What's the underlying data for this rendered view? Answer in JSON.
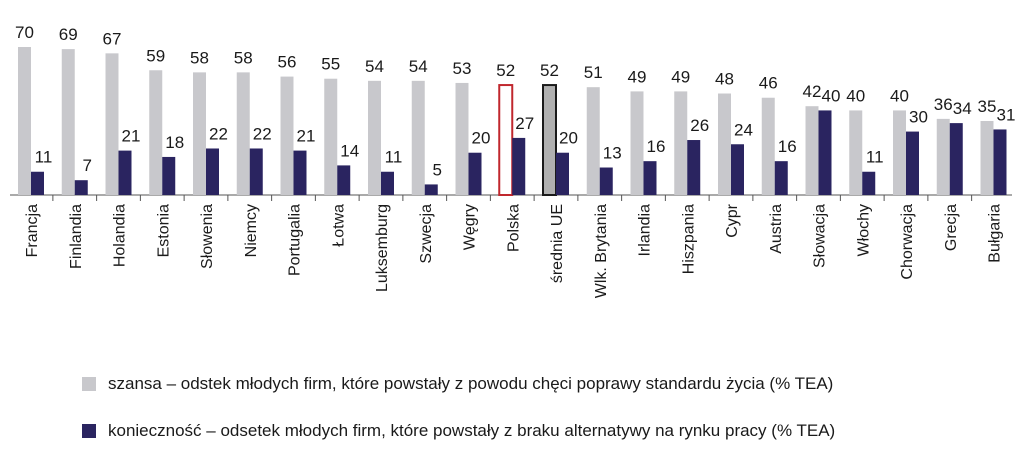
{
  "colors": {
    "szansa": "#c8c8cc",
    "koniecznosc": "#2a2460",
    "highlight_polska": "#c0272d",
    "highlight_srednia": "#1a1a1a",
    "srednia_fill": "#b0b0b0"
  },
  "chart_data": {
    "type": "bar",
    "categories": [
      "Francja",
      "Finlandia",
      "Holandia",
      "Estonia",
      "Słowenia",
      "Niemcy",
      "Portugalia",
      "Łotwa",
      "Luksemburg",
      "Szwecja",
      "Węgry",
      "Polska",
      "średnia UE",
      "Wlk. Brytania",
      "Irlandia",
      "Hiszpania",
      "Cypr",
      "Austria",
      "Słowacja",
      "Włochy",
      "Chorwacja",
      "Grecja",
      "Bułgaria"
    ],
    "series": [
      {
        "name": "szansa – odstek młodych firm, które powstały z powodu chęci poprawy standardu życia (% TEA)",
        "values": [
          70,
          69,
          67,
          59,
          58,
          58,
          56,
          55,
          54,
          54,
          53,
          52,
          52,
          51,
          49,
          49,
          48,
          46,
          42,
          40,
          40,
          36,
          35
        ]
      },
      {
        "name": "konieczność – odsetek młodych firm, które powstały z braku alternatywy na rynku pracy (% TEA)",
        "values": [
          11,
          7,
          21,
          18,
          22,
          22,
          21,
          14,
          11,
          5,
          20,
          27,
          20,
          13,
          16,
          26,
          24,
          16,
          40,
          11,
          30,
          34,
          31
        ]
      }
    ],
    "highlighted": {
      "Polska": "highlight_polska",
      "średnia UE": "highlight_srednia"
    },
    "ylim": [
      0,
      70
    ],
    "grid": false,
    "legend": "bottom"
  }
}
